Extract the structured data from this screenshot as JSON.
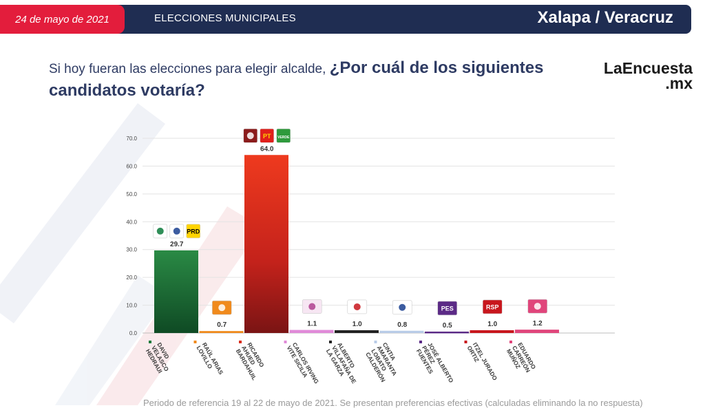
{
  "header": {
    "date": "24 de mayo de 2021",
    "section": "ELECCIONES MUNICIPALES",
    "place": "Xalapa / Veracruz"
  },
  "colors": {
    "header_bg": "#1f2d52",
    "date_bg": "#e31d3c",
    "title_text": "#2e3b63"
  },
  "question": {
    "part1": "Si hoy fueran las elecciones para elegir alcalde, ",
    "part2": "¿Por cuál de los siguientes candidatos votaría?"
  },
  "logo": {
    "line1": "LaEncuesta",
    "line2": ".mx"
  },
  "footnote": "Periodo de referencia 19 al 22 de mayo de 2021. Se presentan preferencias efectivas (calculadas eliminando la no respuesta)",
  "chart_data": {
    "type": "bar",
    "title": "",
    "xlabel": "",
    "ylabel": "",
    "ylim": [
      0,
      70
    ],
    "yticks": [
      "0.0",
      "10.0",
      "20.0",
      "30.0",
      "40.0",
      "50.0",
      "60.0",
      "70.0"
    ],
    "grid": true,
    "legend": "none",
    "categories": [
      "DAVID VELASCO HEDRAUI",
      "RAÚL ARIAS LOVILLO",
      "RICARDO AHUED BARDAHUIL",
      "CARLOS IRVING VITE SICILIA",
      "ALBERTO VILLAFAÑA DE LA GARZA",
      "CINTIA AMARANTA LOBATO CALDERÓN",
      "JOSÉ ALBERTO PÉREZ FUENTES",
      "ITZEL JURADO ORTIZ",
      "EDUARDO CARREÓN MUÑOZ"
    ],
    "category_lines": [
      [
        "DAVID",
        "VELASCO",
        "HEDRAUI"
      ],
      [
        "RAÚL ARIAS",
        "LOVILLO"
      ],
      [
        "RICARDO",
        "AHUED",
        "BARDAHUIL"
      ],
      [
        "CARLOS IRVING",
        "VITE SICILIA"
      ],
      [
        "ALBERTO",
        "VILLAFAÑA DE",
        "LA GARZA"
      ],
      [
        "CINTIA",
        "AMARANTA",
        "LOBATO",
        "CALDERÓN"
      ],
      [
        "JOSÉ ALBERTO",
        "PÉREZ",
        "FUENTES"
      ],
      [
        "ITZEL JURADO",
        "ORTIZ"
      ],
      [
        "EDUARDO",
        "CARREÓN",
        "MUÑOZ"
      ]
    ],
    "values": [
      29.7,
      0.7,
      64.0,
      1.1,
      1.0,
      0.8,
      0.5,
      1.0,
      1.2
    ],
    "value_labels": [
      "29.7",
      "0.7",
      "64.0",
      "1.1",
      "1.0",
      "0.8",
      "0.5",
      "1.0",
      "1.2"
    ],
    "bar_colors": [
      "#1e7a3a",
      "#f08a1c",
      "#d92b1a",
      "#e08ad8",
      "#222222",
      "#b9cce8",
      "#5b2a86",
      "#c8161d",
      "#e0457b"
    ],
    "party_logos": [
      [
        {
          "text": "",
          "bg": "#ffffff",
          "fg": "#0b7a3b",
          "name": "pri-logo"
        },
        {
          "text": "",
          "bg": "#ffffff",
          "fg": "#1a3f8f",
          "name": "pan-logo"
        },
        {
          "text": "PRD",
          "bg": "#ffd400",
          "fg": "#000000",
          "name": "prd-logo"
        }
      ],
      [
        {
          "text": "",
          "bg": "#f08a1c",
          "fg": "#ffffff",
          "name": "mc-logo"
        }
      ],
      [
        {
          "text": "",
          "bg": "#8b1c1c",
          "fg": "#ffffff",
          "name": "morena-logo"
        },
        {
          "text": "PT",
          "bg": "#e0201b",
          "fg": "#ffd400",
          "name": "pt-logo"
        },
        {
          "text": "VERDE",
          "bg": "#2e9a3c",
          "fg": "#ffffff",
          "name": "verde-logo"
        }
      ],
      [
        {
          "text": "",
          "bg": "#f7e6f3",
          "fg": "#b0408f",
          "name": "fxm-logo"
        }
      ],
      [
        {
          "text": "",
          "bg": "#ffffff",
          "fg": "#c8161d",
          "name": "todos-por-veracruz-logo"
        }
      ],
      [
        {
          "text": "",
          "bg": "#ffffff",
          "fg": "#1a3f8f",
          "name": "unidad-ciudadana-logo"
        }
      ],
      [
        {
          "text": "PES",
          "bg": "#5b2a86",
          "fg": "#ffffff",
          "name": "pes-logo"
        }
      ],
      [
        {
          "text": "RSP",
          "bg": "#c8161d",
          "fg": "#ffffff",
          "name": "rsp-logo"
        }
      ],
      [
        {
          "text": "",
          "bg": "#e0457b",
          "fg": "#ffffff",
          "name": "podemos-logo"
        }
      ]
    ]
  }
}
